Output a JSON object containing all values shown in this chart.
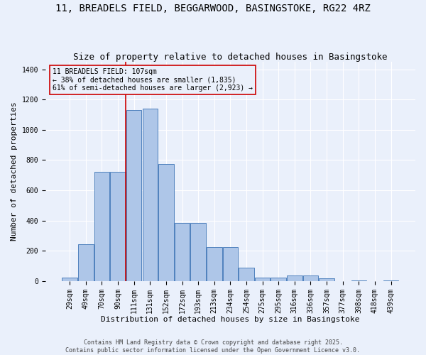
{
  "title": "11, BREADELS FIELD, BEGGARWOOD, BASINGSTOKE, RG22 4RZ",
  "subtitle": "Size of property relative to detached houses in Basingstoke",
  "xlabel": "Distribution of detached houses by size in Basingstoke",
  "ylabel": "Number of detached properties",
  "categories": [
    "29sqm",
    "49sqm",
    "70sqm",
    "90sqm",
    "111sqm",
    "131sqm",
    "152sqm",
    "172sqm",
    "193sqm",
    "213sqm",
    "234sqm",
    "254sqm",
    "275sqm",
    "295sqm",
    "316sqm",
    "336sqm",
    "357sqm",
    "377sqm",
    "398sqm",
    "418sqm",
    "439sqm"
  ],
  "values": [
    25,
    245,
    720,
    720,
    1130,
    1140,
    775,
    385,
    385,
    225,
    225,
    90,
    25,
    25,
    35,
    35,
    20,
    0,
    5,
    0,
    5
  ],
  "bar_color": "#aec6e8",
  "bar_edge_color": "#4f81bd",
  "background_color": "#eaf0fb",
  "grid_color": "#ffffff",
  "annotation_box_text": "11 BREADELS FIELD: 107sqm\n← 38% of detached houses are smaller (1,835)\n61% of semi-detached houses are larger (2,923) →",
  "red_line_index": 4,
  "red_line_color": "#cc0000",
  "ylim": [
    0,
    1450
  ],
  "yticks": [
    0,
    200,
    400,
    600,
    800,
    1000,
    1200,
    1400
  ],
  "footer_line1": "Contains HM Land Registry data © Crown copyright and database right 2025.",
  "footer_line2": "Contains public sector information licensed under the Open Government Licence v3.0.",
  "title_fontsize": 10,
  "subtitle_fontsize": 9,
  "axis_label_fontsize": 8,
  "tick_fontsize": 7,
  "annotation_fontsize": 7,
  "footer_fontsize": 6
}
